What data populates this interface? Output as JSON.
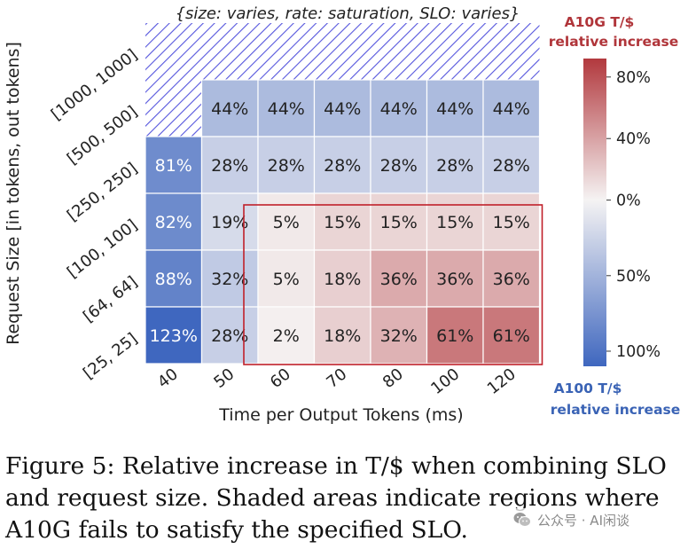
{
  "chart_data": {
    "type": "heatmap",
    "title": "{size: varies, rate: saturation, SLO: varies}",
    "xlabel": "Time per Output Tokens (ms)",
    "ylabel": "Request Size [in tokens, out tokens]",
    "x_categories": [
      "40",
      "50",
      "60",
      "70",
      "80",
      "100",
      "120"
    ],
    "y_categories": [
      "[1000, 1000]",
      "[500, 500]",
      "[250, 250]",
      "[100, 100]",
      "[64, 64]",
      "[25, 25]"
    ],
    "cells": [
      {
        "row": 0,
        "col": 0,
        "value": null,
        "label": ""
      },
      {
        "row": 0,
        "col": 1,
        "value": null,
        "label": ""
      },
      {
        "row": 0,
        "col": 2,
        "value": null,
        "label": ""
      },
      {
        "row": 0,
        "col": 3,
        "value": null,
        "label": ""
      },
      {
        "row": 0,
        "col": 4,
        "value": null,
        "label": ""
      },
      {
        "row": 0,
        "col": 5,
        "value": null,
        "label": ""
      },
      {
        "row": 0,
        "col": 6,
        "value": null,
        "label": ""
      },
      {
        "row": 1,
        "col": 0,
        "value": null,
        "label": ""
      },
      {
        "row": 1,
        "col": 1,
        "value": -44,
        "label": "44%"
      },
      {
        "row": 1,
        "col": 2,
        "value": -44,
        "label": "44%"
      },
      {
        "row": 1,
        "col": 3,
        "value": -44,
        "label": "44%"
      },
      {
        "row": 1,
        "col": 4,
        "value": -44,
        "label": "44%"
      },
      {
        "row": 1,
        "col": 5,
        "value": -44,
        "label": "44%"
      },
      {
        "row": 1,
        "col": 6,
        "value": -44,
        "label": "44%"
      },
      {
        "row": 2,
        "col": 0,
        "value": -81,
        "label": "81%"
      },
      {
        "row": 2,
        "col": 1,
        "value": -28,
        "label": "28%"
      },
      {
        "row": 2,
        "col": 2,
        "value": -28,
        "label": "28%"
      },
      {
        "row": 2,
        "col": 3,
        "value": -28,
        "label": "28%"
      },
      {
        "row": 2,
        "col": 4,
        "value": -28,
        "label": "28%"
      },
      {
        "row": 2,
        "col": 5,
        "value": -28,
        "label": "28%"
      },
      {
        "row": 2,
        "col": 6,
        "value": -28,
        "label": "28%"
      },
      {
        "row": 3,
        "col": 0,
        "value": -82,
        "label": "82%"
      },
      {
        "row": 3,
        "col": 1,
        "value": -19,
        "label": "19%"
      },
      {
        "row": 3,
        "col": 2,
        "value": 5,
        "label": "5%"
      },
      {
        "row": 3,
        "col": 3,
        "value": 15,
        "label": "15%"
      },
      {
        "row": 3,
        "col": 4,
        "value": 15,
        "label": "15%"
      },
      {
        "row": 3,
        "col": 5,
        "value": 15,
        "label": "15%"
      },
      {
        "row": 3,
        "col": 6,
        "value": 15,
        "label": "15%"
      },
      {
        "row": 4,
        "col": 0,
        "value": -88,
        "label": "88%"
      },
      {
        "row": 4,
        "col": 1,
        "value": -32,
        "label": "32%"
      },
      {
        "row": 4,
        "col": 2,
        "value": 5,
        "label": "5%"
      },
      {
        "row": 4,
        "col": 3,
        "value": 18,
        "label": "18%"
      },
      {
        "row": 4,
        "col": 4,
        "value": 36,
        "label": "36%"
      },
      {
        "row": 4,
        "col": 5,
        "value": 36,
        "label": "36%"
      },
      {
        "row": 4,
        "col": 6,
        "value": 36,
        "label": "36%"
      },
      {
        "row": 5,
        "col": 0,
        "value": -123,
        "label": "123%"
      },
      {
        "row": 5,
        "col": 1,
        "value": -28,
        "label": "28%"
      },
      {
        "row": 5,
        "col": 2,
        "value": 2,
        "label": "2%"
      },
      {
        "row": 5,
        "col": 3,
        "value": 18,
        "label": "18%"
      },
      {
        "row": 5,
        "col": 4,
        "value": 32,
        "label": "32%"
      },
      {
        "row": 5,
        "col": 5,
        "value": 61,
        "label": "61%"
      },
      {
        "row": 5,
        "col": 6,
        "value": 61,
        "label": "61%"
      }
    ],
    "hatched_cells": "[1000, 1000] row (all SLOs) and [500, 500] at 40 ms",
    "highlight_box": {
      "rows": [
        "[100, 100]",
        "[64, 64]",
        "[25, 25]"
      ],
      "cols": [
        "60",
        "70",
        "80",
        "100",
        "120"
      ]
    },
    "colorbar": {
      "top_label_line1": "A10G T/$",
      "top_label_line2": "relative increase",
      "bottom_label_line1": "A100 T/$",
      "bottom_label_line2": "relative increase",
      "tick_labels": [
        "80%",
        "40%",
        "0%",
        "50%",
        "100%"
      ],
      "tick_values": [
        80,
        40,
        0,
        -50,
        -100
      ],
      "range": [
        -110,
        92
      ]
    },
    "colors": {
      "positive_max": "#b2393e",
      "neutral": "#f5f3f3",
      "negative_max": "#3f67bf",
      "highlight_box": "#c0202a",
      "hatch": "#5555dd",
      "a10g_label": "#b0353a",
      "a100_label": "#3a63b5"
    }
  },
  "caption": {
    "line1": "Figure 5: Relative increase in T/$ when combining SLO",
    "line2": "and request size.  Shaded areas indicate regions where",
    "line3": "A10G fails to satisfy the specified SLO."
  },
  "watermark": {
    "text": "公众号 · AI闲谈",
    "icon": "wechat-icon"
  }
}
